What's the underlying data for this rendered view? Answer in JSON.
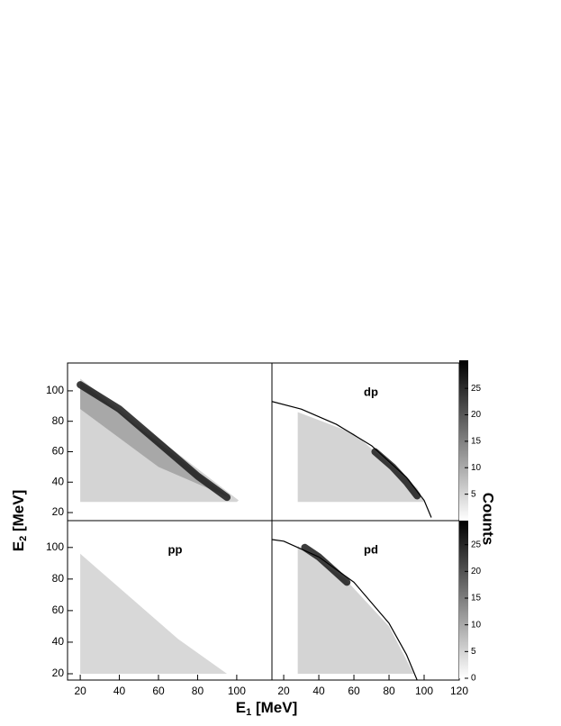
{
  "chart_data": {
    "type": "heatmap",
    "xlabel": {
      "main": "E",
      "sub": "1",
      "unit": " [MeV]"
    },
    "ylabel": {
      "main": "E",
      "sub": "2",
      "unit": " [MeV]"
    },
    "colorbar_label": "Counts",
    "panels": [
      {
        "label": null,
        "xlim": [
          13.5,
          118
        ],
        "ylim": [
          14.7,
          118.3
        ],
        "xticks": [],
        "yticks": [
          20,
          40,
          60,
          80,
          100
        ],
        "series": [
          {
            "name": null,
            "kind": "region",
            "color": "#d4d4d4",
            "x": [
              20,
              20,
              100,
              101
            ],
            "y": [
              108,
              27,
              27,
              28
            ]
          },
          {
            "name": null,
            "kind": "region",
            "color": "#a8a8a8",
            "x": [
              20,
              20,
              60,
              96
            ],
            "y": [
              106,
              88,
              50,
              30
            ]
          },
          {
            "name": null,
            "kind": "ridge",
            "color": "#1a1a1a",
            "x": [
              20,
              40,
              60,
              80,
              95
            ],
            "y": [
              104,
              88,
              66,
              44,
              30
            ]
          }
        ]
      },
      {
        "label": "dp",
        "xlim": [
          13.3,
          120
        ],
        "ylim": [
          14.7,
          118.3
        ],
        "xticks": [],
        "yticks": [],
        "series": [
          {
            "name": null,
            "kind": "region",
            "color": "#d4d4d4",
            "x": [
              28,
              28,
              100,
              96,
              60
            ],
            "y": [
              86,
              27,
              27,
              36,
              72
            ]
          },
          {
            "name": null,
            "kind": "ridge",
            "color": "#1a1a1a",
            "x": [
              72,
              82,
              90,
              96
            ],
            "y": [
              60,
              50,
              40,
              31
            ]
          },
          {
            "name": null,
            "kind": "curve",
            "color": "#000000",
            "x": [
              13.3,
              30,
              50,
              70,
              90,
              100,
              104
            ],
            "y": [
              93,
              88,
              78,
              64,
              43,
              28,
              17
            ]
          }
        ]
      },
      {
        "label": "pp",
        "xlim": [
          13.5,
          118
        ],
        "ylim": [
          16,
          117
        ],
        "xticks": [
          20,
          40,
          60,
          80,
          100
        ],
        "yticks": [
          20,
          40,
          60,
          80,
          100
        ],
        "series": [
          {
            "name": null,
            "kind": "region",
            "color": "#d8d8d8",
            "x": [
              20,
              20,
              95,
              70
            ],
            "y": [
              96,
              20,
              20,
              42
            ]
          }
        ]
      },
      {
        "label": "pd",
        "xlim": [
          13.3,
          120
        ],
        "ylim": [
          16,
          117
        ],
        "xticks": [
          20,
          40,
          60,
          80,
          100,
          120
        ],
        "yticks": [],
        "series": [
          {
            "name": null,
            "kind": "region",
            "color": "#d4d4d4",
            "x": [
              28,
              28,
              94,
              80,
              55
            ],
            "y": [
              101,
              20,
              20,
              50,
              80
            ]
          },
          {
            "name": null,
            "kind": "ridge",
            "color": "#1a1a1a",
            "x": [
              32,
              40,
              48,
              56
            ],
            "y": [
              100,
              94,
              86,
              78
            ]
          },
          {
            "name": null,
            "kind": "curve",
            "color": "#000000",
            "x": [
              13.3,
              20,
              40,
              60,
              80,
              90,
              96
            ],
            "y": [
              105,
              104,
              94,
              78,
              52,
              32,
              16
            ]
          }
        ]
      }
    ],
    "colorbars": [
      {
        "zlim": [
          0,
          30.3
        ],
        "zticks": [
          5,
          10,
          15,
          20,
          25
        ]
      },
      {
        "zlim": [
          0,
          29.5
        ],
        "zticks": [
          0,
          5,
          10,
          15,
          20,
          25
        ]
      }
    ]
  }
}
